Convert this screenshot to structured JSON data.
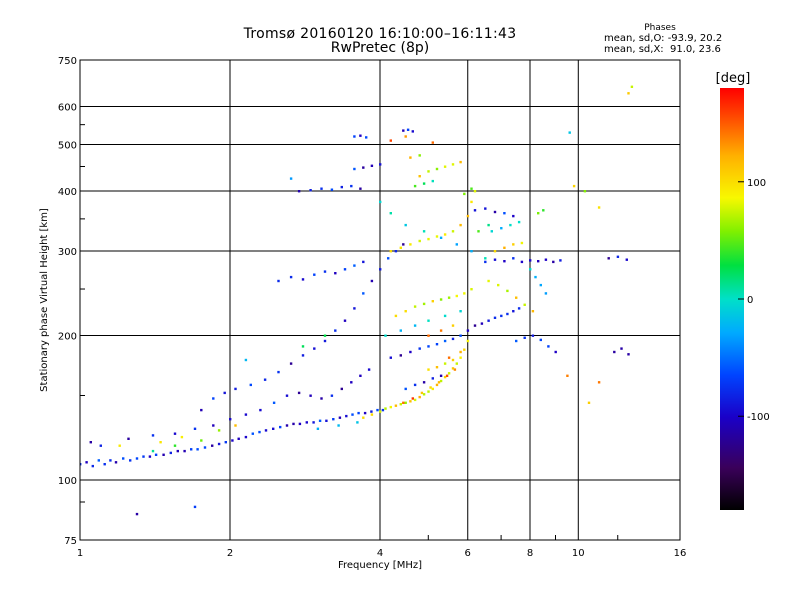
{
  "header": {
    "title_line1": "Tromsø 20160120 16:10:00–16:11:43",
    "title_line2": "RwPretec (8p)"
  },
  "stats": {
    "heading": "Phases",
    "o_mode": "mean, sd,O: -93.9, 20.2",
    "x_mode": "mean, sd,X:  91.0, 23.6"
  },
  "colors": {
    "grid": "#000000",
    "background": "#ffffff",
    "colormap": "rainbow (black-purple-blue-cyan-green-yellow-orange-red)"
  },
  "chart_data": {
    "type": "scatter",
    "title": "Tromsø 20160120 16:10:00–16:11:43",
    "subtitle": "RwPretec (8p)",
    "xlabel": "Frequency [MHz]",
    "ylabel": "Stationary phase Virtual Height [km]",
    "x_scale": "log",
    "y_scale": "log",
    "xlim": [
      1,
      16
    ],
    "ylim": [
      75,
      750
    ],
    "x_ticks": [
      1,
      2,
      4,
      6,
      8,
      10,
      16
    ],
    "x_tick_labels": [
      "1",
      "2",
      "4",
      "6",
      "8",
      "10",
      "16"
    ],
    "y_ticks": [
      75,
      100,
      200,
      300,
      400,
      500,
      600,
      750
    ],
    "y_tick_labels": [
      "75",
      "100",
      "200",
      "300",
      "400",
      "500",
      "600",
      "750"
    ],
    "grid": true,
    "colorbar": {
      "label": "[deg]",
      "range": [
        -180,
        180
      ],
      "ticks": [
        100,
        0,
        -100
      ],
      "tick_labels": [
        "100",
        "0",
        "-100"
      ]
    },
    "series": [
      {
        "mode": "O",
        "phase_deg_approx": -100,
        "points": [
          [
            1.0,
            108
          ],
          [
            1.03,
            109
          ],
          [
            1.06,
            107
          ],
          [
            1.09,
            110
          ],
          [
            1.12,
            108
          ],
          [
            1.15,
            110
          ],
          [
            1.18,
            109
          ],
          [
            1.22,
            111
          ],
          [
            1.26,
            110
          ],
          [
            1.3,
            111
          ],
          [
            1.34,
            112
          ],
          [
            1.38,
            112
          ],
          [
            1.42,
            113
          ],
          [
            1.47,
            113
          ],
          [
            1.52,
            114
          ],
          [
            1.57,
            115
          ],
          [
            1.62,
            115
          ],
          [
            1.67,
            116
          ],
          [
            1.72,
            116
          ],
          [
            1.78,
            117
          ],
          [
            1.84,
            118
          ],
          [
            1.9,
            119
          ],
          [
            1.96,
            120
          ],
          [
            2.02,
            121
          ],
          [
            2.08,
            122
          ],
          [
            2.15,
            123
          ],
          [
            2.22,
            125
          ],
          [
            2.29,
            126
          ],
          [
            2.36,
            127
          ],
          [
            2.44,
            128
          ],
          [
            2.52,
            129
          ],
          [
            2.6,
            130
          ],
          [
            2.68,
            131
          ],
          [
            2.76,
            131
          ],
          [
            2.85,
            132
          ],
          [
            2.94,
            132
          ],
          [
            3.03,
            133
          ],
          [
            3.12,
            133
          ],
          [
            3.22,
            134
          ],
          [
            3.32,
            135
          ],
          [
            3.42,
            136
          ],
          [
            3.52,
            137
          ],
          [
            3.62,
            138
          ],
          [
            3.73,
            138
          ],
          [
            3.84,
            139
          ],
          [
            3.95,
            140
          ],
          [
            4.05,
            140
          ],
          [
            1.05,
            120
          ],
          [
            1.1,
            118
          ],
          [
            1.25,
            122
          ],
          [
            1.4,
            124
          ],
          [
            1.55,
            125
          ],
          [
            1.7,
            128
          ],
          [
            1.85,
            130
          ],
          [
            2.0,
            134
          ],
          [
            2.15,
            137
          ],
          [
            2.3,
            140
          ],
          [
            2.45,
            145
          ],
          [
            2.6,
            150
          ],
          [
            2.75,
            152
          ],
          [
            2.9,
            150
          ],
          [
            3.05,
            148
          ],
          [
            3.2,
            150
          ],
          [
            3.35,
            155
          ],
          [
            3.5,
            160
          ],
          [
            3.65,
            165
          ],
          [
            3.8,
            170
          ],
          [
            1.75,
            140
          ],
          [
            1.85,
            148
          ],
          [
            1.95,
            152
          ],
          [
            2.05,
            155
          ],
          [
            2.2,
            158
          ],
          [
            2.35,
            162
          ],
          [
            2.5,
            168
          ],
          [
            2.65,
            175
          ],
          [
            2.8,
            182
          ],
          [
            2.95,
            188
          ],
          [
            3.1,
            195
          ],
          [
            3.25,
            205
          ],
          [
            3.4,
            215
          ],
          [
            3.55,
            228
          ],
          [
            3.7,
            245
          ],
          [
            3.85,
            260
          ],
          [
            4.0,
            275
          ],
          [
            4.15,
            290
          ],
          [
            4.3,
            300
          ],
          [
            4.45,
            310
          ],
          [
            2.5,
            260
          ],
          [
            2.65,
            265
          ],
          [
            2.8,
            262
          ],
          [
            2.95,
            268
          ],
          [
            3.1,
            272
          ],
          [
            3.25,
            270
          ],
          [
            3.4,
            275
          ],
          [
            3.55,
            280
          ],
          [
            3.7,
            285
          ],
          [
            2.75,
            400
          ],
          [
            2.9,
            402
          ],
          [
            3.05,
            405
          ],
          [
            3.2,
            403
          ],
          [
            3.35,
            408
          ],
          [
            3.5,
            410
          ],
          [
            3.65,
            405
          ],
          [
            3.55,
            445
          ],
          [
            3.7,
            448
          ],
          [
            3.85,
            452
          ],
          [
            4.0,
            455
          ],
          [
            3.55,
            520
          ],
          [
            3.65,
            522
          ],
          [
            3.75,
            518
          ],
          [
            4.45,
            535
          ],
          [
            4.55,
            537
          ],
          [
            4.65,
            533
          ],
          [
            4.2,
            180
          ],
          [
            4.4,
            182
          ],
          [
            4.6,
            185
          ],
          [
            4.8,
            188
          ],
          [
            5.0,
            190
          ],
          [
            5.2,
            192
          ],
          [
            5.4,
            195
          ],
          [
            5.6,
            197
          ],
          [
            5.8,
            200
          ],
          [
            6.0,
            205
          ],
          [
            6.2,
            210
          ],
          [
            6.4,
            212
          ],
          [
            6.6,
            215
          ],
          [
            6.8,
            218
          ],
          [
            7.0,
            220
          ],
          [
            7.2,
            222
          ],
          [
            7.4,
            225
          ],
          [
            7.6,
            228
          ],
          [
            4.5,
            155
          ],
          [
            4.7,
            158
          ],
          [
            4.9,
            160
          ],
          [
            5.1,
            163
          ],
          [
            5.3,
            165
          ],
          [
            6.5,
            285
          ],
          [
            6.8,
            288
          ],
          [
            7.1,
            286
          ],
          [
            7.4,
            290
          ],
          [
            7.7,
            285
          ],
          [
            8.0,
            287
          ],
          [
            8.3,
            286
          ],
          [
            8.6,
            288
          ],
          [
            8.9,
            285
          ],
          [
            9.2,
            287
          ],
          [
            7.5,
            195
          ],
          [
            7.8,
            198
          ],
          [
            8.1,
            200
          ],
          [
            8.4,
            196
          ],
          [
            8.7,
            190
          ],
          [
            9.0,
            185
          ],
          [
            6.2,
            365
          ],
          [
            6.5,
            368
          ],
          [
            6.8,
            362
          ],
          [
            7.1,
            360
          ],
          [
            7.4,
            355
          ],
          [
            11.5,
            290
          ],
          [
            12.0,
            292
          ],
          [
            12.5,
            288
          ],
          [
            11.8,
            185
          ],
          [
            12.2,
            188
          ],
          [
            12.6,
            183
          ],
          [
            1.3,
            85
          ],
          [
            1.7,
            88
          ]
        ]
      },
      {
        "mode": "X",
        "phase_deg_approx": 90,
        "points": [
          [
            3.7,
            135
          ],
          [
            3.85,
            137
          ],
          [
            4.0,
            139
          ],
          [
            4.1,
            141
          ],
          [
            4.2,
            142
          ],
          [
            4.3,
            143
          ],
          [
            4.4,
            144
          ],
          [
            4.5,
            145
          ],
          [
            4.6,
            146
          ],
          [
            4.7,
            147
          ],
          [
            4.8,
            149
          ],
          [
            4.9,
            151
          ],
          [
            5.0,
            153
          ],
          [
            5.1,
            155
          ],
          [
            5.2,
            158
          ],
          [
            5.3,
            161
          ],
          [
            5.4,
            164
          ],
          [
            5.5,
            167
          ],
          [
            5.6,
            171
          ],
          [
            5.7,
            175
          ],
          [
            5.8,
            180
          ],
          [
            5.9,
            187
          ],
          [
            6.0,
            195
          ],
          [
            4.3,
            220
          ],
          [
            4.5,
            225
          ],
          [
            4.7,
            230
          ],
          [
            4.9,
            233
          ],
          [
            5.1,
            236
          ],
          [
            5.3,
            238
          ],
          [
            5.5,
            240
          ],
          [
            5.7,
            242
          ],
          [
            5.9,
            245
          ],
          [
            6.1,
            250
          ],
          [
            4.2,
            300
          ],
          [
            4.4,
            305
          ],
          [
            4.6,
            310
          ],
          [
            4.8,
            315
          ],
          [
            5.0,
            318
          ],
          [
            5.2,
            322
          ],
          [
            5.4,
            325
          ],
          [
            5.6,
            330
          ],
          [
            5.8,
            340
          ],
          [
            6.0,
            355
          ],
          [
            6.1,
            380
          ],
          [
            6.2,
            400
          ],
          [
            4.8,
            430
          ],
          [
            5.0,
            440
          ],
          [
            5.2,
            445
          ],
          [
            5.4,
            450
          ],
          [
            5.6,
            455
          ],
          [
            5.8,
            460
          ],
          [
            4.6,
            470
          ],
          [
            4.8,
            475
          ],
          [
            6.6,
            260
          ],
          [
            6.9,
            255
          ],
          [
            7.2,
            248
          ],
          [
            7.5,
            240
          ],
          [
            7.8,
            232
          ],
          [
            8.1,
            225
          ],
          [
            6.8,
            300
          ],
          [
            7.1,
            305
          ],
          [
            7.4,
            310
          ],
          [
            7.7,
            312
          ],
          [
            5.0,
            170
          ],
          [
            5.2,
            172
          ],
          [
            5.4,
            175
          ],
          [
            5.6,
            178
          ],
          [
            1.2,
            118
          ],
          [
            1.45,
            120
          ],
          [
            1.6,
            123
          ],
          [
            1.9,
            127
          ],
          [
            2.05,
            130
          ],
          [
            9.8,
            410
          ],
          [
            10.3,
            400
          ],
          [
            11.0,
            370
          ],
          [
            12.8,
            660
          ],
          [
            12.6,
            640
          ]
        ]
      },
      {
        "mode": "O (cyan)",
        "phase_deg_approx": -20,
        "points": [
          [
            4.0,
            380
          ],
          [
            4.2,
            360
          ],
          [
            4.5,
            340
          ],
          [
            4.9,
            330
          ],
          [
            5.3,
            320
          ],
          [
            5.7,
            310
          ],
          [
            6.1,
            300
          ],
          [
            6.5,
            290
          ],
          [
            4.1,
            200
          ],
          [
            4.4,
            205
          ],
          [
            4.7,
            210
          ],
          [
            5.0,
            215
          ],
          [
            5.4,
            220
          ],
          [
            5.8,
            225
          ],
          [
            6.7,
            330
          ],
          [
            7.0,
            335
          ],
          [
            7.3,
            340
          ],
          [
            7.6,
            345
          ],
          [
            8.0,
            275
          ],
          [
            8.2,
            265
          ],
          [
            8.4,
            255
          ],
          [
            8.6,
            245
          ],
          [
            3.0,
            128
          ],
          [
            3.3,
            130
          ],
          [
            3.6,
            132
          ],
          [
            9.6,
            530
          ],
          [
            2.65,
            425
          ],
          [
            2.15,
            178
          ]
        ]
      },
      {
        "mode": "X (orange)",
        "phase_deg_approx": 130,
        "points": [
          [
            4.45,
            145
          ],
          [
            4.65,
            148
          ],
          [
            4.85,
            152
          ],
          [
            5.05,
            156
          ],
          [
            5.25,
            160
          ],
          [
            5.45,
            165
          ],
          [
            5.65,
            170
          ],
          [
            5.0,
            200
          ],
          [
            5.3,
            205
          ],
          [
            5.6,
            210
          ],
          [
            4.2,
            510
          ],
          [
            4.5,
            520
          ],
          [
            5.1,
            505
          ],
          [
            5.5,
            180
          ],
          [
            5.8,
            185
          ],
          [
            10.5,
            145
          ],
          [
            11.0,
            160
          ],
          [
            9.5,
            165
          ]
        ]
      },
      {
        "mode": "X (green)",
        "phase_deg_approx": 30,
        "points": [
          [
            4.7,
            410
          ],
          [
            4.9,
            415
          ],
          [
            5.1,
            420
          ],
          [
            5.9,
            395
          ],
          [
            6.1,
            405
          ],
          [
            6.3,
            330
          ],
          [
            6.6,
            340
          ],
          [
            1.4,
            115
          ],
          [
            1.55,
            118
          ],
          [
            1.75,
            121
          ],
          [
            2.8,
            190
          ],
          [
            3.1,
            200
          ],
          [
            8.3,
            360
          ],
          [
            8.5,
            365
          ]
        ]
      }
    ]
  }
}
